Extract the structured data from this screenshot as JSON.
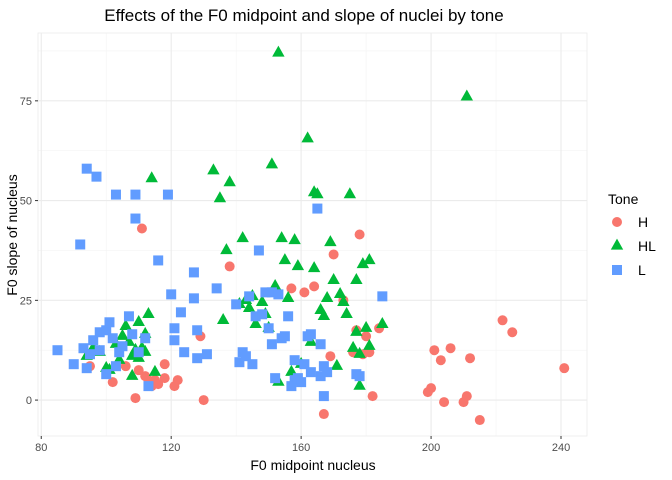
{
  "chart_data": {
    "type": "scatter",
    "title": "Effects of the F0 midpoint and slope of nuclei by tone",
    "xlabel": "F0 midpoint nucleus",
    "ylabel": "F0 slope of nucleus",
    "xlim": [
      79,
      248
    ],
    "ylim": [
      -9,
      92
    ],
    "xticks": [
      80,
      120,
      160,
      200,
      240
    ],
    "xtick_labels": [
      "80",
      "120",
      "160",
      "200",
      "240"
    ],
    "yticks": [
      0,
      25,
      50,
      75
    ],
    "ytick_labels": [
      "0",
      "25",
      "50",
      "75"
    ],
    "grid": true,
    "legend": {
      "title": "Tone",
      "position": "right",
      "entries": [
        "H",
        "HL",
        "L"
      ]
    },
    "series": [
      {
        "name": "H",
        "marker": "circle",
        "color": "#F8766D",
        "points": [
          [
            95,
            8.5
          ],
          [
            102,
            4.5
          ],
          [
            106,
            8.5
          ],
          [
            109,
            0.5
          ],
          [
            110,
            7.5
          ],
          [
            111,
            43
          ],
          [
            112,
            6
          ],
          [
            113,
            5
          ],
          [
            114,
            3.5
          ],
          [
            115,
            5
          ],
          [
            116,
            4
          ],
          [
            118,
            9
          ],
          [
            118,
            5.5
          ],
          [
            121,
            3.5
          ],
          [
            122,
            5
          ],
          [
            129,
            16
          ],
          [
            130,
            0
          ],
          [
            138,
            33.5
          ],
          [
            157,
            28
          ],
          [
            161,
            27
          ],
          [
            164,
            28.5
          ],
          [
            167,
            -3.5
          ],
          [
            169,
            11
          ],
          [
            170,
            36.5
          ],
          [
            173,
            25
          ],
          [
            176,
            12
          ],
          [
            177,
            17.5
          ],
          [
            178,
            41.5
          ],
          [
            179,
            11.5
          ],
          [
            180,
            16
          ],
          [
            181,
            12
          ],
          [
            182,
            1
          ],
          [
            184,
            18
          ],
          [
            199,
            2
          ],
          [
            200,
            3
          ],
          [
            201,
            12.5
          ],
          [
            203,
            10
          ],
          [
            204,
            -0.5
          ],
          [
            206,
            13
          ],
          [
            210,
            -0.5
          ],
          [
            211,
            1
          ],
          [
            212,
            10.5
          ],
          [
            215,
            -5
          ],
          [
            222,
            20
          ],
          [
            225,
            17
          ],
          [
            241,
            8
          ]
        ]
      },
      {
        "name": "HL",
        "marker": "triangle",
        "color": "#00BA38",
        "points": [
          [
            94,
            11
          ],
          [
            96,
            13
          ],
          [
            98,
            12
          ],
          [
            100,
            8
          ],
          [
            101,
            7.5
          ],
          [
            103,
            14
          ],
          [
            104,
            10
          ],
          [
            105,
            16
          ],
          [
            106,
            18.5
          ],
          [
            107,
            14.5
          ],
          [
            108,
            6
          ],
          [
            108,
            11
          ],
          [
            109,
            12.5
          ],
          [
            110,
            10.5
          ],
          [
            110,
            19.5
          ],
          [
            111,
            13
          ],
          [
            112,
            12
          ],
          [
            112,
            16.5
          ],
          [
            113,
            21.5
          ],
          [
            114,
            55.5
          ],
          [
            115,
            7
          ],
          [
            133,
            57.5
          ],
          [
            135,
            50.5
          ],
          [
            136,
            20
          ],
          [
            137,
            37.5
          ],
          [
            138,
            54.5
          ],
          [
            141,
            24
          ],
          [
            142,
            40.5
          ],
          [
            143,
            25
          ],
          [
            144,
            23
          ],
          [
            145,
            26
          ],
          [
            146,
            19
          ],
          [
            148,
            24.5
          ],
          [
            149,
            21.5
          ],
          [
            150,
            18
          ],
          [
            151,
            59
          ],
          [
            152,
            28.5
          ],
          [
            153,
            87
          ],
          [
            153,
            4.5
          ],
          [
            154,
            40.5
          ],
          [
            155,
            35
          ],
          [
            156,
            25.5
          ],
          [
            157,
            7
          ],
          [
            158,
            40
          ],
          [
            159,
            33.5
          ],
          [
            160,
            9
          ],
          [
            162,
            65.5
          ],
          [
            163,
            14.5
          ],
          [
            164,
            52
          ],
          [
            164,
            33
          ],
          [
            165,
            51.5
          ],
          [
            166,
            22.5
          ],
          [
            167,
            21
          ],
          [
            168,
            25.5
          ],
          [
            169,
            39.5
          ],
          [
            170,
            30
          ],
          [
            171,
            8.5
          ],
          [
            172,
            26.5
          ],
          [
            173,
            24.5
          ],
          [
            174,
            21.5
          ],
          [
            175,
            51.5
          ],
          [
            176,
            13
          ],
          [
            177,
            17
          ],
          [
            177,
            30
          ],
          [
            178,
            3.5
          ],
          [
            178,
            11.5
          ],
          [
            179,
            34
          ],
          [
            180,
            18
          ],
          [
            181,
            13.5
          ],
          [
            181,
            35
          ],
          [
            185,
            19
          ],
          [
            211,
            76
          ]
        ]
      },
      {
        "name": "L",
        "marker": "square",
        "color": "#619CFF",
        "points": [
          [
            85,
            12.5
          ],
          [
            90,
            9
          ],
          [
            92,
            39
          ],
          [
            93,
            13
          ],
          [
            94,
            8
          ],
          [
            94,
            58
          ],
          [
            95,
            11.5
          ],
          [
            96,
            15
          ],
          [
            97,
            56
          ],
          [
            98,
            12.5
          ],
          [
            98,
            17
          ],
          [
            100,
            17.5
          ],
          [
            100,
            6.5
          ],
          [
            101,
            19.5
          ],
          [
            102,
            15.5
          ],
          [
            103,
            51.5
          ],
          [
            103,
            8.5
          ],
          [
            104,
            12
          ],
          [
            105,
            13.5
          ],
          [
            107,
            21
          ],
          [
            108,
            16.5
          ],
          [
            109,
            51.5
          ],
          [
            109,
            45.5
          ],
          [
            110,
            12
          ],
          [
            112,
            15.5
          ],
          [
            113,
            3.5
          ],
          [
            116,
            35
          ],
          [
            119,
            51.5
          ],
          [
            120,
            26.5
          ],
          [
            121,
            15
          ],
          [
            121,
            18
          ],
          [
            123,
            22
          ],
          [
            124,
            12
          ],
          [
            127,
            32
          ],
          [
            127,
            25.5
          ],
          [
            128,
            17.5
          ],
          [
            128,
            10.5
          ],
          [
            131,
            11.5
          ],
          [
            134,
            28
          ],
          [
            140,
            24
          ],
          [
            141,
            9.5
          ],
          [
            142,
            12
          ],
          [
            143,
            11
          ],
          [
            144,
            26
          ],
          [
            145,
            9
          ],
          [
            146,
            21
          ],
          [
            147,
            37.5
          ],
          [
            148,
            21.5
          ],
          [
            149,
            27
          ],
          [
            150,
            18
          ],
          [
            151,
            27
          ],
          [
            151,
            14
          ],
          [
            152,
            5.5
          ],
          [
            153,
            26.5
          ],
          [
            154,
            15.5
          ],
          [
            155,
            16
          ],
          [
            156,
            21
          ],
          [
            157,
            3.5
          ],
          [
            158,
            5
          ],
          [
            158,
            10
          ],
          [
            159,
            5.5
          ],
          [
            160,
            4.5
          ],
          [
            161,
            9
          ],
          [
            162,
            16
          ],
          [
            163,
            7
          ],
          [
            163,
            16.5
          ],
          [
            165,
            48
          ],
          [
            166,
            14
          ],
          [
            166,
            6
          ],
          [
            167,
            8.5
          ],
          [
            167,
            1
          ],
          [
            168,
            7
          ],
          [
            177,
            6.5
          ],
          [
            178,
            6
          ],
          [
            185,
            26
          ]
        ]
      }
    ]
  }
}
